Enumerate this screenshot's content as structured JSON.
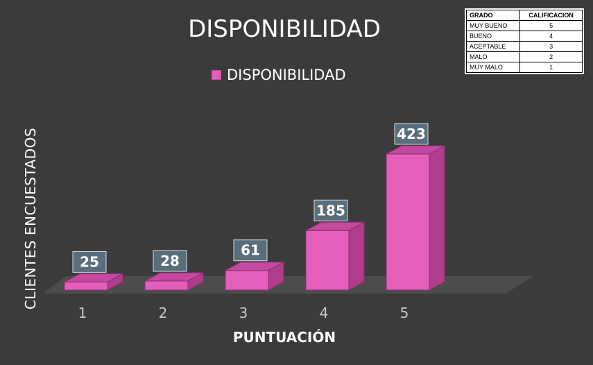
{
  "chart_data": {
    "type": "bar",
    "title": "DISPONIBILIDAD",
    "xlabel": "PUNTUACIÓN",
    "ylabel": "CLIENTES ENCUESTADOS",
    "categories": [
      "1",
      "2",
      "3",
      "4",
      "5"
    ],
    "series": [
      {
        "name": "DISPONIBILIDAD",
        "values": [
          25,
          28,
          61,
          185,
          423
        ]
      }
    ],
    "ylim": [
      0,
      450
    ],
    "grid": false,
    "legend_position": "top",
    "style_3d": true
  },
  "grade_table": {
    "headers": [
      "GRADO",
      "CALIFICACION"
    ],
    "rows": [
      [
        "MUY BUENO",
        "5"
      ],
      [
        "BUENO",
        "4"
      ],
      [
        "ACEPTABLE",
        "3"
      ],
      [
        "MALO",
        "2"
      ],
      [
        "MUY MALO",
        "1"
      ]
    ]
  },
  "colors": {
    "background": "#3b3b3b",
    "bar_front": "#e35fbb",
    "bar_side": "#b03c8c",
    "bar_top": "#c449a0",
    "floor": "#4c4c4c",
    "label_box": "#5f7786"
  }
}
